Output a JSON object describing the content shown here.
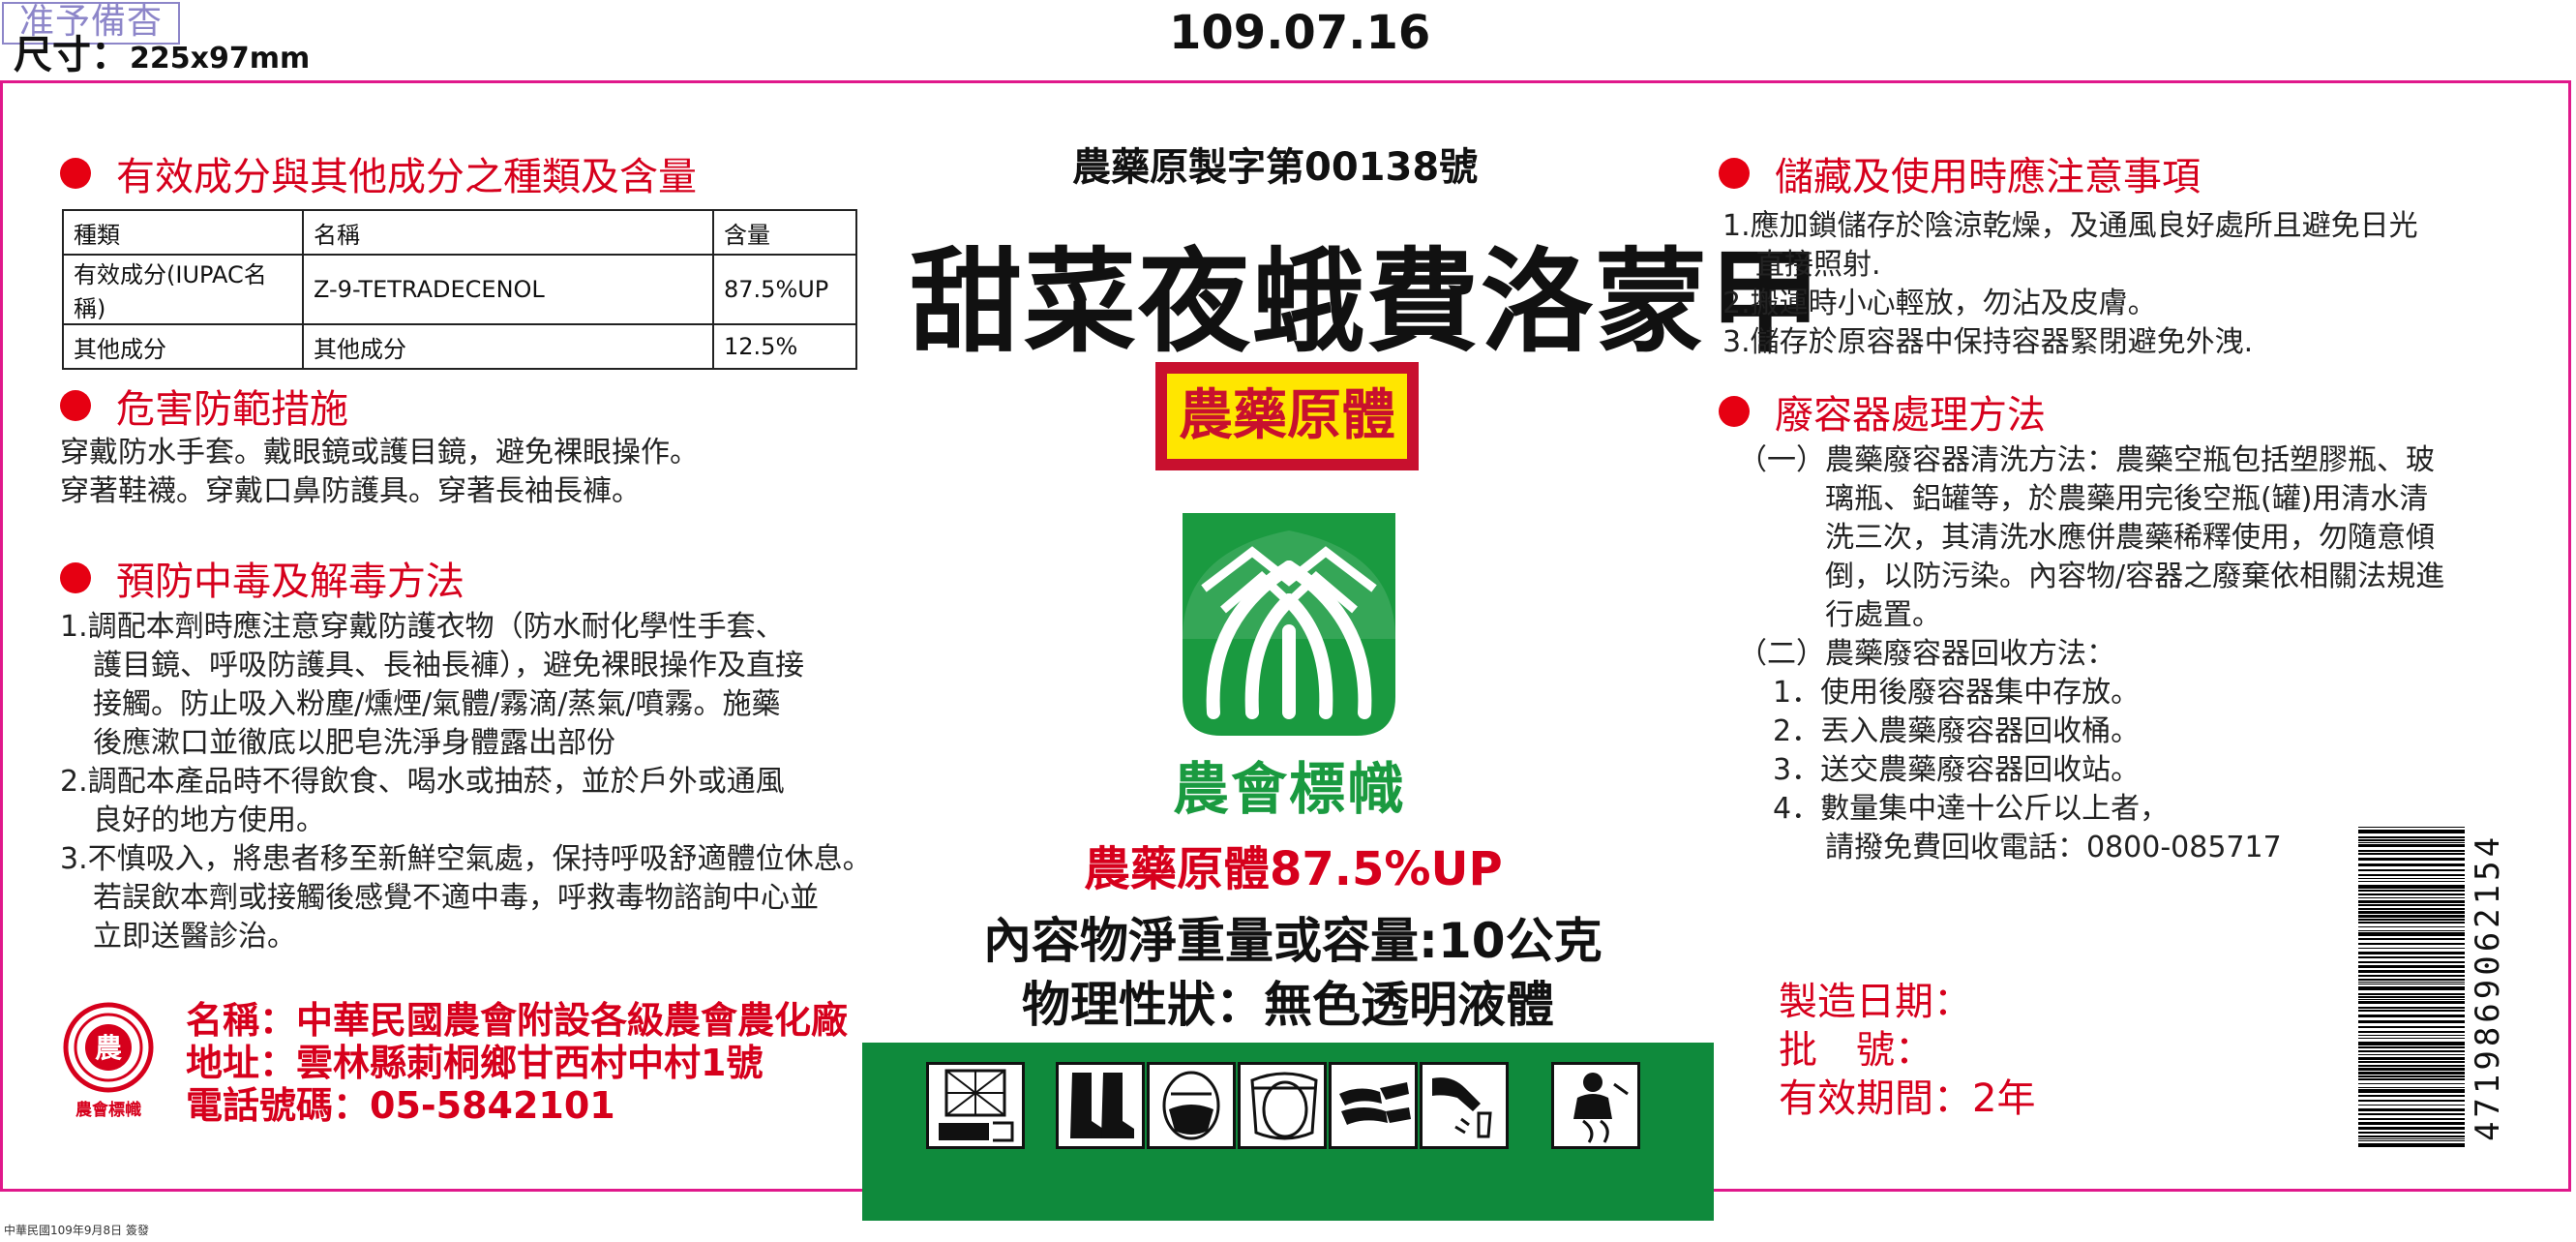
{
  "top": {
    "stamp": "准予備杳",
    "size_label": "尺寸：",
    "size_value": "225x97mm",
    "date": "109.07.16"
  },
  "left": {
    "ingredients": {
      "heading": "有效成分與其他成分之種類及含量",
      "header": [
        "種類",
        "名稱",
        "含量"
      ],
      "rows": [
        [
          "有效成分(IUPAC名稱)",
          "Z-9-TETRADECENOL",
          "87.5%UP"
        ],
        [
          "其他成分",
          "其他成分",
          "12.5%"
        ]
      ]
    },
    "hazard": {
      "heading": "危害防範措施",
      "lines": [
        "穿戴防水手套。戴眼鏡或護目鏡，避免裸眼操作。",
        "穿著鞋襪。穿戴口鼻防護具。穿著長袖長褲。"
      ]
    },
    "poison": {
      "heading": "預防中毒及解毒方法",
      "lines": [
        "1.調配本劑時應注意穿戴防護衣物（防水耐化學性手套、",
        "護目鏡、呼吸防護具、長袖長褲），避免裸眼操作及直接",
        "接觸。防止吸入粉塵/燻煙/氣體/霧滴/蒸氣/噴霧。施藥",
        "後應漱口並徹底以肥皂洗淨身體露出部份",
        "2.調配本產品時不得飲食、喝水或抽菸，並於戶外或通風",
        "良好的地方使用。",
        "3.不慎吸入，將患者移至新鮮空氣處，保持呼吸舒適體位休息。",
        "若誤飲本劑或接觸後感覺不適中毒，呼救毒物諮詢中心並",
        "立即送醫診治。"
      ]
    },
    "manufacturer": {
      "logo_text": "農",
      "logo_caption": "農會標幟",
      "name": "名稱：中華民國農會附設各級農會農化廠",
      "address": "地址：雲林縣莿桐鄉甘西村中村1號",
      "phone": "電話號碼：05-5842101"
    }
  },
  "center": {
    "registration": "農藥原製字第00138號",
    "product_name": "甜菜夜蛾費洛蒙甲",
    "badge": "農藥原體",
    "logo_caption": "農會標幟",
    "concentration": "農藥原體87.5%UP",
    "net_content": "內容物淨重量或容量:10公克",
    "physical_state": "物理性狀：無色透明液體",
    "pictograms": [
      "toxic-icon",
      "boots-icon",
      "mask-icon",
      "face-shield-icon",
      "gloves-icon",
      "wash-hands-icon",
      "first-aid-icon"
    ]
  },
  "right": {
    "storage": {
      "heading": "儲藏及使用時應注意事項",
      "lines": [
        "1.應加鎖儲存於陰涼乾燥，及通風良好處所且避免日光",
        "直接照射.",
        "2.搬運時小心輕放，勿沾及皮膚。",
        "3.儲存於原容器中保持容器緊閉避免外洩."
      ]
    },
    "disposal": {
      "heading": "廢容器處理方法",
      "lines": [
        "（一）農藥廢容器清洗方法：農藥空瓶包括塑膠瓶、玻",
        "璃瓶、鋁罐等，於農藥用完後空瓶(罐)用清水清",
        "洗三次，其清洗水應併農藥稀釋使用，勿隨意傾",
        "倒，以防污染。內容物/容器之廢棄依相關法規進",
        "行處置。",
        "（二）農藥廢容器回收方法：",
        "1．使用後廢容器集中存放。",
        "2．丟入農藥廢容器回收桶。",
        "3．送交農藥廢容器回收站。",
        "4．數量集中達十公斤以上者，",
        "請撥免費回收電話：0800-085717"
      ]
    },
    "dates": {
      "manufacture": "製造日期：",
      "batch": "批　號：",
      "expiry": "有效期間：2年"
    },
    "barcode_number": "4719869062154"
  },
  "footer_note": "中華民國109年9月8日 簽發"
}
